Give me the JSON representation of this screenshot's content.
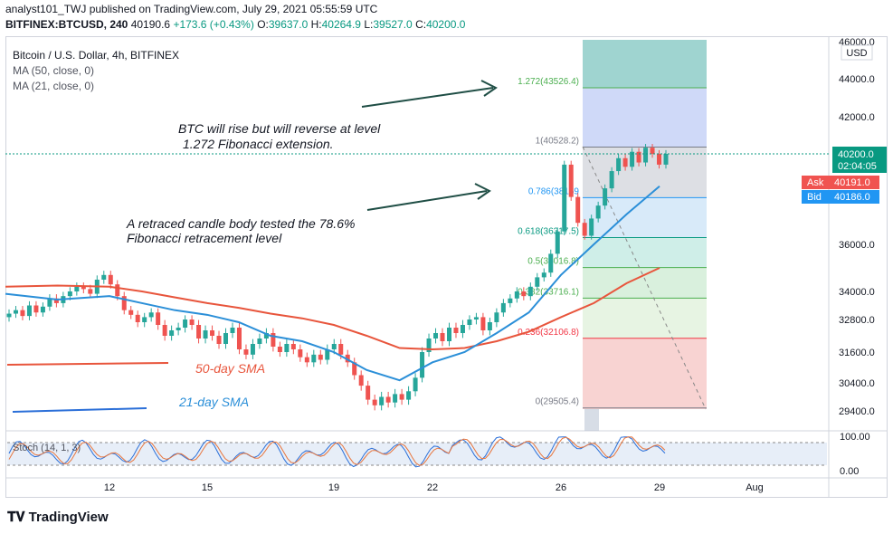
{
  "header": {
    "publisher_line": "analyst101_TWJ published on TradingView.com, July 29, 2021 05:55:59 UTC",
    "symbol": "BITFINEX:BTCUSD, 240",
    "last": "40190.6",
    "change": "+173.6 (+0.43%)",
    "o_label": "O:",
    "o_value": "39637.0",
    "h_label": "H:",
    "h_value": "40264.9",
    "l_label": "L:",
    "l_value": "39527.0",
    "c_label": "C:",
    "c_value": "40200.0"
  },
  "legend": {
    "title": "Bitcoin / U.S. Dollar, 4h, BITFINEX",
    "ma1": "MA (50, close, 0)",
    "ma2": "MA (21, close, 0)"
  },
  "annotations": {
    "rise_line1": "BTC will rise but will reverse at level",
    "rise_line2": "1.272 Fibonacci extension.",
    "retrace_line1": "A retraced candle body tested the 78.6%",
    "retrace_line2": "Fibonacci retracement level",
    "sma50": "50-day SMA",
    "sma21": "21-day SMA"
  },
  "price_axis": {
    "unit": "USD",
    "ticks": [
      "46000.0",
      "44000.0",
      "42000.0",
      "36000.0",
      "34000.0",
      "32800.0",
      "31600.0",
      "30400.0",
      "29400.0"
    ],
    "current_price": "40200.0",
    "countdown": "02:04:05",
    "ask_label": "Ask",
    "ask_value": "40191.0",
    "bid_label": "Bid",
    "bid_value": "40186.0"
  },
  "time_axis": {
    "ticks": [
      "12",
      "15",
      "19",
      "22",
      "26",
      "29",
      "Aug"
    ]
  },
  "stoch": {
    "label": "Stoch (14, 1, 3)",
    "ticks": [
      "100.00",
      "0.00"
    ]
  },
  "fib_levels": [
    {
      "ratio": "1.272",
      "price": "43526.4",
      "label": "1.272(43526.4)"
    },
    {
      "ratio": "1",
      "price": "40528.2",
      "label": "1(40528.2)"
    },
    {
      "ratio": "0.786",
      "price": "38169",
      "label": "0.786(38169"
    },
    {
      "ratio": "0.618",
      "price": "36317.5",
      "label": "0.618(36317.5)"
    },
    {
      "ratio": "0.5",
      "price": "35016.8",
      "label": "0.5(35016.8)"
    },
    {
      "ratio": "0.382",
      "price": "33716.1",
      "label": "0.382(33716.1)"
    },
    {
      "ratio": "0.236",
      "price": "32106.8",
      "label": "0.236(32106.8)"
    },
    {
      "ratio": "0",
      "price": "29505.4",
      "label": "0(29505.4)"
    }
  ],
  "brand": {
    "name": "TradingView"
  },
  "colors": {
    "up": "#26a69a",
    "down": "#ef5350",
    "sma50": "#e8553c",
    "sma21": "#2b8fd8",
    "ask": "#f05350",
    "bid": "#2196f3",
    "price_tag": "#089981"
  },
  "chart_data": {
    "type": "line",
    "title": "Bitcoin / U.S. Dollar, 4h, BITFINEX",
    "x_ticks": [
      "12",
      "15",
      "19",
      "22",
      "26",
      "29",
      "Aug"
    ],
    "y_ticks": [
      46000,
      44000,
      42000,
      36000,
      34000,
      32800,
      31600,
      30400,
      29400
    ],
    "series": [
      {
        "name": "MA (50, close, 0)",
        "x": [
          10,
          11,
          12,
          13,
          14,
          15,
          16,
          17,
          18,
          19,
          20,
          21,
          22,
          23,
          24,
          25,
          26,
          27,
          28,
          29
        ],
        "values": [
          34200,
          34250,
          34200,
          34000,
          33750,
          33500,
          33300,
          33050,
          32850,
          32600,
          32200,
          31750,
          31700,
          31750,
          32000,
          32350,
          32900,
          33500,
          34350,
          35000
        ]
      },
      {
        "name": "MA (21, close, 0)",
        "x": [
          10,
          11,
          12,
          13,
          14,
          15,
          16,
          17,
          18,
          19,
          20,
          21,
          22,
          23,
          24,
          25,
          26,
          27,
          28,
          29
        ],
        "values": [
          33900,
          33650,
          33800,
          33500,
          33200,
          33000,
          32700,
          32200,
          32000,
          31600,
          30900,
          30500,
          31200,
          31600,
          32300,
          33100,
          34700,
          36000,
          37400,
          38700
        ]
      }
    ]
  }
}
